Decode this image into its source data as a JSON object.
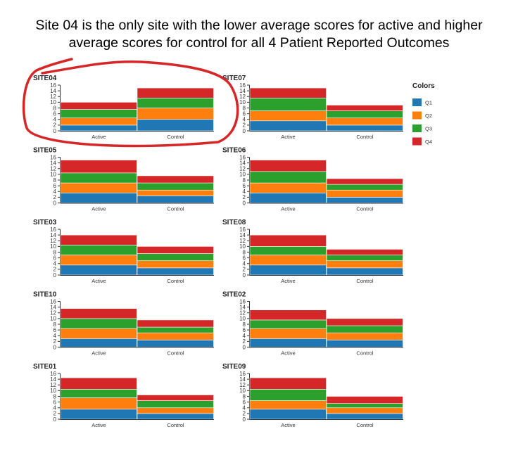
{
  "headline": {
    "line1": "Site 04 is the only site with the lower average scores for active and higher",
    "line2": "average scores for control for all 4 Patient Reported Outcomes"
  },
  "legend": {
    "title": "Colors",
    "items": [
      {
        "label": "Q1",
        "color": "#1f77b4"
      },
      {
        "label": "Q2",
        "color": "#ff7f0e"
      },
      {
        "label": "Q3",
        "color": "#2ca02c"
      },
      {
        "label": "Q4",
        "color": "#d62728"
      }
    ]
  },
  "highlight_color": "#d62728",
  "chart_data": {
    "type": "bar",
    "stacked": true,
    "categories": [
      "Active",
      "Control"
    ],
    "series_names": [
      "Q1",
      "Q2",
      "Q3",
      "Q4"
    ],
    "ylim": [
      0,
      16
    ],
    "yticks": [
      0,
      2,
      4,
      6,
      8,
      10,
      12,
      14,
      16
    ],
    "panels": [
      {
        "site": "SITE04",
        "values": {
          "Active": [
            2.0,
            2.5,
            3.0,
            2.5
          ],
          "Control": [
            4.0,
            4.0,
            3.5,
            3.5
          ]
        },
        "highlighted": true
      },
      {
        "site": "SITE07",
        "values": {
          "Active": [
            3.5,
            3.5,
            4.5,
            3.5
          ],
          "Control": [
            2.0,
            2.5,
            2.5,
            2.0
          ]
        }
      },
      {
        "site": "SITE05",
        "values": {
          "Active": [
            3.5,
            3.5,
            3.5,
            4.5
          ],
          "Control": [
            2.5,
            2.0,
            2.5,
            2.5
          ]
        }
      },
      {
        "site": "SITE06",
        "values": {
          "Active": [
            3.5,
            3.5,
            4.0,
            4.0
          ],
          "Control": [
            2.0,
            2.5,
            2.0,
            2.0
          ]
        }
      },
      {
        "site": "SITE03",
        "values": {
          "Active": [
            3.5,
            3.5,
            3.5,
            3.5
          ],
          "Control": [
            2.5,
            2.5,
            2.5,
            2.5
          ]
        }
      },
      {
        "site": "SITE08",
        "values": {
          "Active": [
            3.5,
            3.5,
            3.0,
            4.0
          ],
          "Control": [
            2.5,
            2.5,
            2.0,
            2.0
          ]
        }
      },
      {
        "site": "SITE10",
        "values": {
          "Active": [
            3.0,
            3.5,
            3.5,
            3.5
          ],
          "Control": [
            2.5,
            2.5,
            2.0,
            2.5
          ]
        }
      },
      {
        "site": "SITE02",
        "values": {
          "Active": [
            3.0,
            3.5,
            3.0,
            3.5
          ],
          "Control": [
            2.5,
            2.5,
            2.5,
            2.5
          ]
        }
      },
      {
        "site": "SITE01",
        "values": {
          "Active": [
            3.5,
            4.0,
            3.0,
            4.0
          ],
          "Control": [
            2.0,
            2.0,
            2.5,
            2.0
          ]
        }
      },
      {
        "site": "SITE09",
        "values": {
          "Active": [
            3.5,
            3.0,
            4.0,
            4.0
          ],
          "Control": [
            2.0,
            2.0,
            1.5,
            2.5
          ]
        }
      }
    ]
  }
}
